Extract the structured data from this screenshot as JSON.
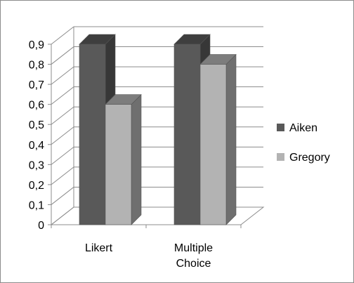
{
  "chart_data": {
    "type": "bar",
    "categories": [
      "Likert",
      "Multiple Choice"
    ],
    "category_lines": [
      [
        "Likert"
      ],
      [
        "Multiple",
        "Choice"
      ]
    ],
    "series": [
      {
        "name": "Aiken",
        "values": [
          0.9,
          0.9
        ],
        "color": "#595959"
      },
      {
        "name": "Gregory",
        "values": [
          0.6,
          0.8
        ],
        "color": "#b3b3b3"
      }
    ],
    "yticks": [
      "0",
      "0,1",
      "0,2",
      "0,3",
      "0,4",
      "0,5",
      "0,6",
      "0,7",
      "0,8",
      "0,9"
    ],
    "ylim": [
      0,
      0.9
    ],
    "title": "",
    "xlabel": "",
    "ylabel": "",
    "grid": true,
    "style": "3d-clustered-column",
    "legend_position": "right"
  }
}
